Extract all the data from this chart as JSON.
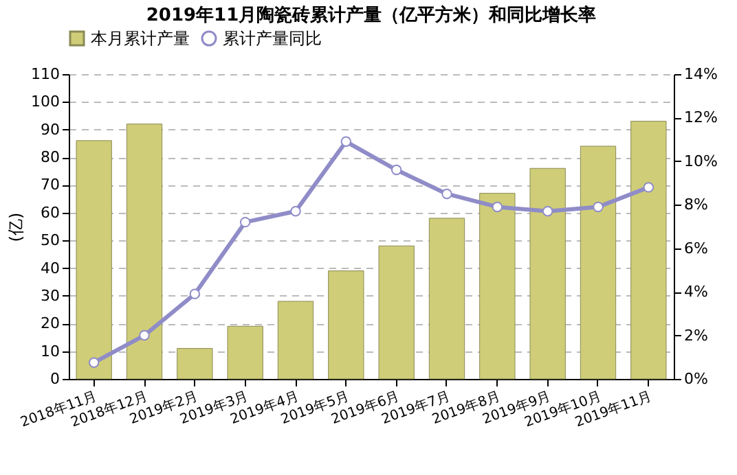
{
  "chart_data": {
    "type": "bar",
    "title": "2019年11月陶瓷砖累计产量（亿平方米）和同比增长率",
    "ylabel": "(亿)",
    "categories": [
      "2018年11月",
      "2018年12月",
      "2019年2月",
      "2019年3月",
      "2019年4月",
      "2019年5月",
      "2019年6月",
      "2019年7月",
      "2019年8月",
      "2019年9月",
      "2019年10月",
      "2019年11月"
    ],
    "series": [
      {
        "name": "本月累计产量",
        "color": "#cfcd78",
        "values": [
          86,
          92,
          11,
          19,
          28,
          39,
          48,
          58,
          67,
          76,
          84,
          93
        ]
      },
      {
        "name": "累计产量同比",
        "type": "line",
        "axis": "y2",
        "color": "#8f8cc8",
        "values": [
          0.75,
          2.0,
          3.9,
          7.2,
          7.7,
          10.9,
          9.6,
          8.5,
          7.9,
          7.7,
          7.9,
          8.8
        ]
      }
    ],
    "ylim": [
      0,
      110
    ],
    "yticks": [
      0,
      10,
      20,
      30,
      40,
      50,
      60,
      70,
      80,
      90,
      100,
      110
    ],
    "y2lim": [
      0,
      14
    ],
    "y2ticks": [
      {
        "value": 0,
        "label": "0%"
      },
      {
        "value": 2,
        "label": "2%"
      },
      {
        "value": 4,
        "label": "4%"
      },
      {
        "value": 6,
        "label": "6%"
      },
      {
        "value": 8,
        "label": "8%"
      },
      {
        "value": 10,
        "label": "10%"
      },
      {
        "value": 12,
        "label": "12%"
      },
      {
        "value": 14,
        "label": "14%"
      }
    ],
    "grid": "y",
    "legend": "top",
    "marker": "circle",
    "line_style": "solid"
  }
}
